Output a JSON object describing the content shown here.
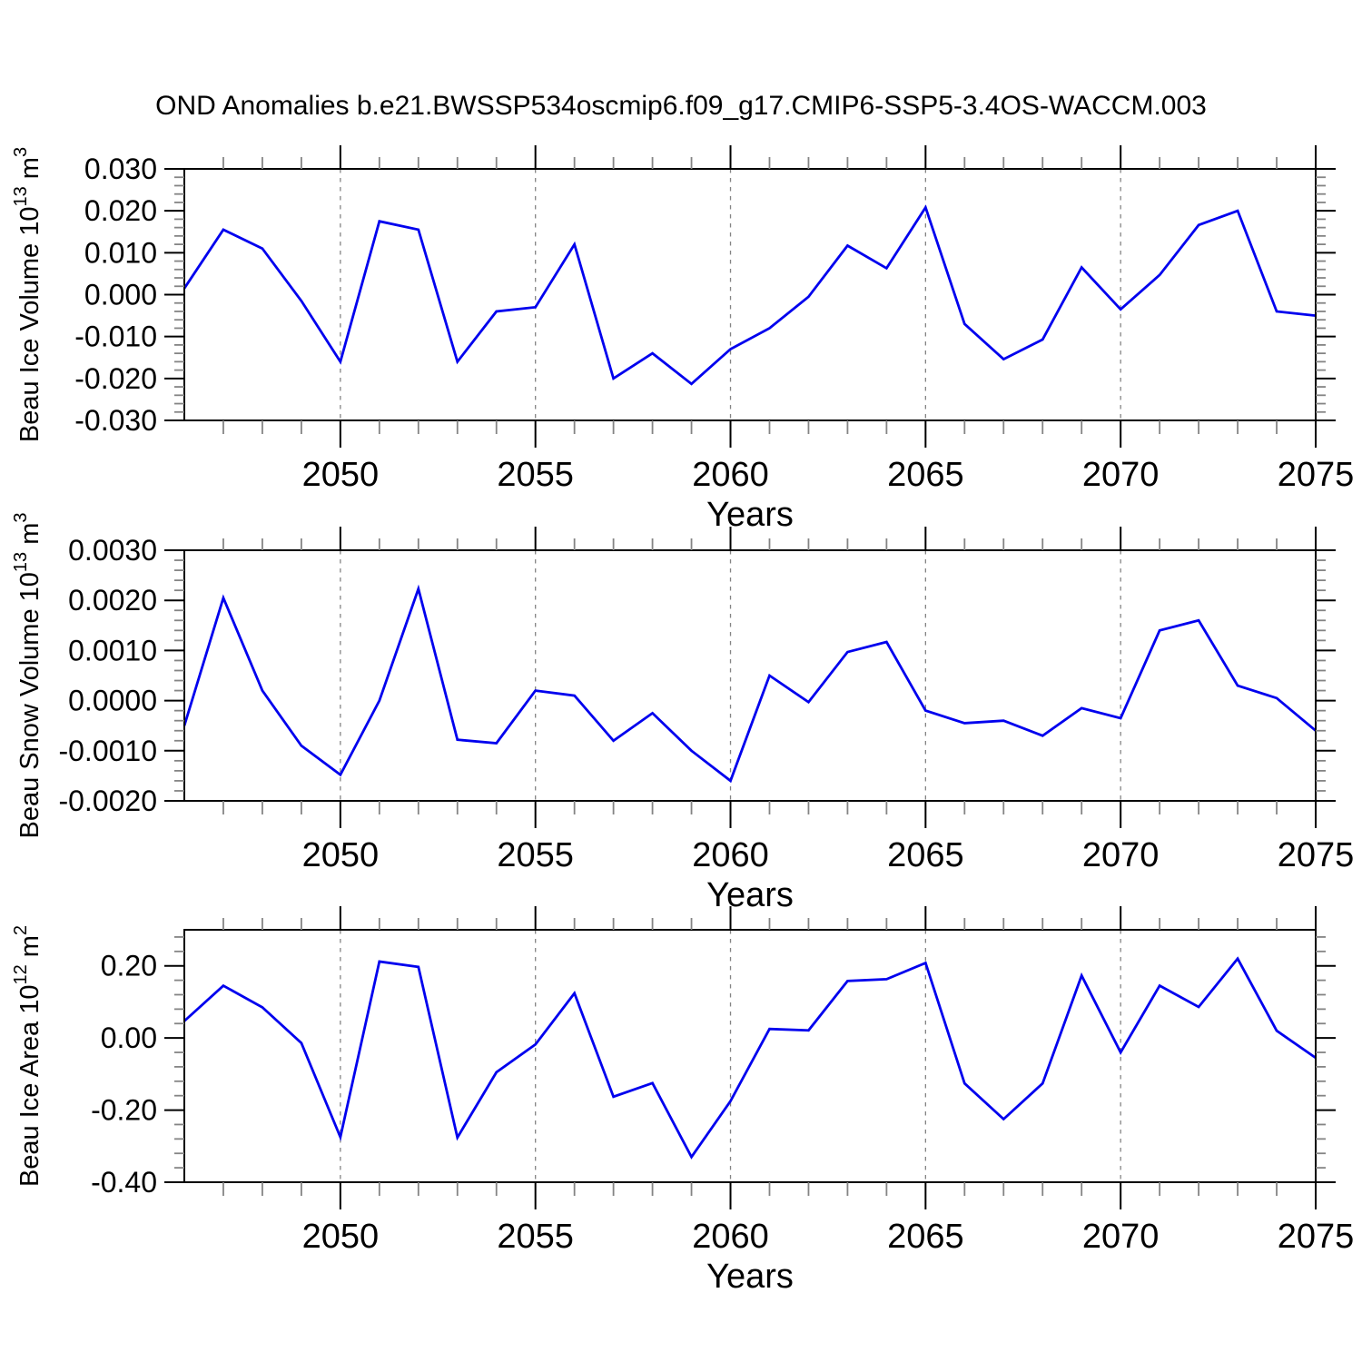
{
  "title": "OND Anomalies b.e21.BWSSP534oscmip6.f09_g17.CMIP6-SSP5-3.4OS-WACCM.003",
  "colors": {
    "line": "#0000EE",
    "axis": "#000000",
    "minor_tick": "#848484",
    "gridline": "#848484",
    "background": "#FFFFFF",
    "text": "#000000"
  },
  "chart_data": {
    "type": "line",
    "title": "OND Anomalies b.e21.BWSSP534oscmip6.f09_g17.CMIP6-SSP5-3.4OS-WACCM.003",
    "grid": "vertical-dashed-at-major-x",
    "legend": "none",
    "x_axis": {
      "label": "Years",
      "range": [
        2046,
        2075
      ],
      "major_ticks": [
        2050,
        2055,
        2060,
        2065,
        2070,
        2075
      ],
      "tick_labels": [
        "2050",
        "2055",
        "2060",
        "2065",
        "2070",
        "2075"
      ],
      "minor_step": 1,
      "gridlines": [
        2050,
        2055,
        2060,
        2065,
        2070
      ]
    },
    "x": [
      2046,
      2047,
      2048,
      2049,
      2050,
      2051,
      2052,
      2053,
      2054,
      2055,
      2056,
      2057,
      2058,
      2059,
      2060,
      2061,
      2062,
      2063,
      2064,
      2065,
      2066,
      2067,
      2068,
      2069,
      2070,
      2071,
      2072,
      2073,
      2074,
      2075
    ],
    "panels": [
      {
        "name": "beau-ice-volume",
        "ylabel_text": "Beau Ice Volume 10^13 m^3",
        "ylabel_parts": {
          "base": "Beau Ice Volume 10",
          "exp": "13",
          "unit": " m",
          "unit_exp": "3"
        },
        "xlabel": "Years",
        "ylim": [
          -0.03,
          0.03
        ],
        "y_major_ticks": [
          0.03,
          0.02,
          0.01,
          0.0,
          -0.01,
          -0.02,
          -0.03
        ],
        "y_tick_labels": [
          "0.030",
          "0.020",
          "0.010",
          "0.000",
          "-0.010",
          "-0.020",
          "-0.030"
        ],
        "y_minor_step": 0.002,
        "values": [
          0.0015,
          0.0155,
          0.011,
          -0.0015,
          -0.016,
          0.0175,
          0.0155,
          -0.016,
          -0.004,
          -0.003,
          0.012,
          -0.02,
          -0.014,
          -0.0213,
          -0.013,
          -0.008,
          -0.0005,
          0.0117,
          0.0063,
          0.0208,
          -0.007,
          -0.0154,
          -0.0107,
          0.0065,
          -0.0035,
          0.0047,
          0.0166,
          0.02,
          -0.004,
          -0.005
        ]
      },
      {
        "name": "beau-snow-volume",
        "ylabel_text": "Beau Snow Volume 10^13 m^3",
        "ylabel_parts": {
          "base": "Beau Snow Volume 10",
          "exp": "13",
          "unit": " m",
          "unit_exp": "3"
        },
        "xlabel": "Years",
        "ylim": [
          -0.002,
          0.003
        ],
        "y_major_ticks": [
          0.003,
          0.002,
          0.001,
          0.0,
          -0.001,
          -0.002
        ],
        "y_tick_labels": [
          "0.0030",
          "0.0020",
          "0.0010",
          "0.0000",
          "-0.0010",
          "-0.0020"
        ],
        "y_minor_step": 0.0002,
        "values": [
          -0.0005,
          0.00205,
          0.0002,
          -0.0009,
          -0.00148,
          0.0,
          0.00223,
          -0.00078,
          -0.00085,
          0.0002,
          0.0001,
          -0.0008,
          -0.00025,
          -0.001,
          -0.0016,
          0.0005,
          -3e-05,
          0.00097,
          0.00117,
          -0.0002,
          -0.00045,
          -0.0004,
          -0.0007,
          -0.00015,
          -0.00035,
          0.0014,
          0.0016,
          0.0003,
          5e-05,
          -0.0006
        ]
      },
      {
        "name": "beau-ice-area",
        "ylabel_text": "Beau Ice Area 10^12 m^2",
        "ylabel_parts": {
          "base": "Beau Ice Area 10",
          "exp": "12",
          "unit": " m",
          "unit_exp": "2"
        },
        "xlabel": "Years",
        "ylim": [
          -0.4,
          0.3
        ],
        "y_major_ticks": [
          0.2,
          0.0,
          -0.2,
          -0.4
        ],
        "y_tick_labels": [
          "0.20",
          "0.00",
          "-0.20",
          "-0.40"
        ],
        "y_minor_step": 0.04,
        "values": [
          0.047,
          0.145,
          0.085,
          -0.014,
          -0.275,
          0.212,
          0.197,
          -0.276,
          -0.095,
          -0.018,
          0.124,
          -0.163,
          -0.125,
          -0.33,
          -0.175,
          0.025,
          0.021,
          0.158,
          0.163,
          0.208,
          -0.126,
          -0.225,
          -0.126,
          0.173,
          -0.04,
          0.145,
          0.086,
          0.22,
          0.02,
          -0.055
        ]
      }
    ]
  }
}
